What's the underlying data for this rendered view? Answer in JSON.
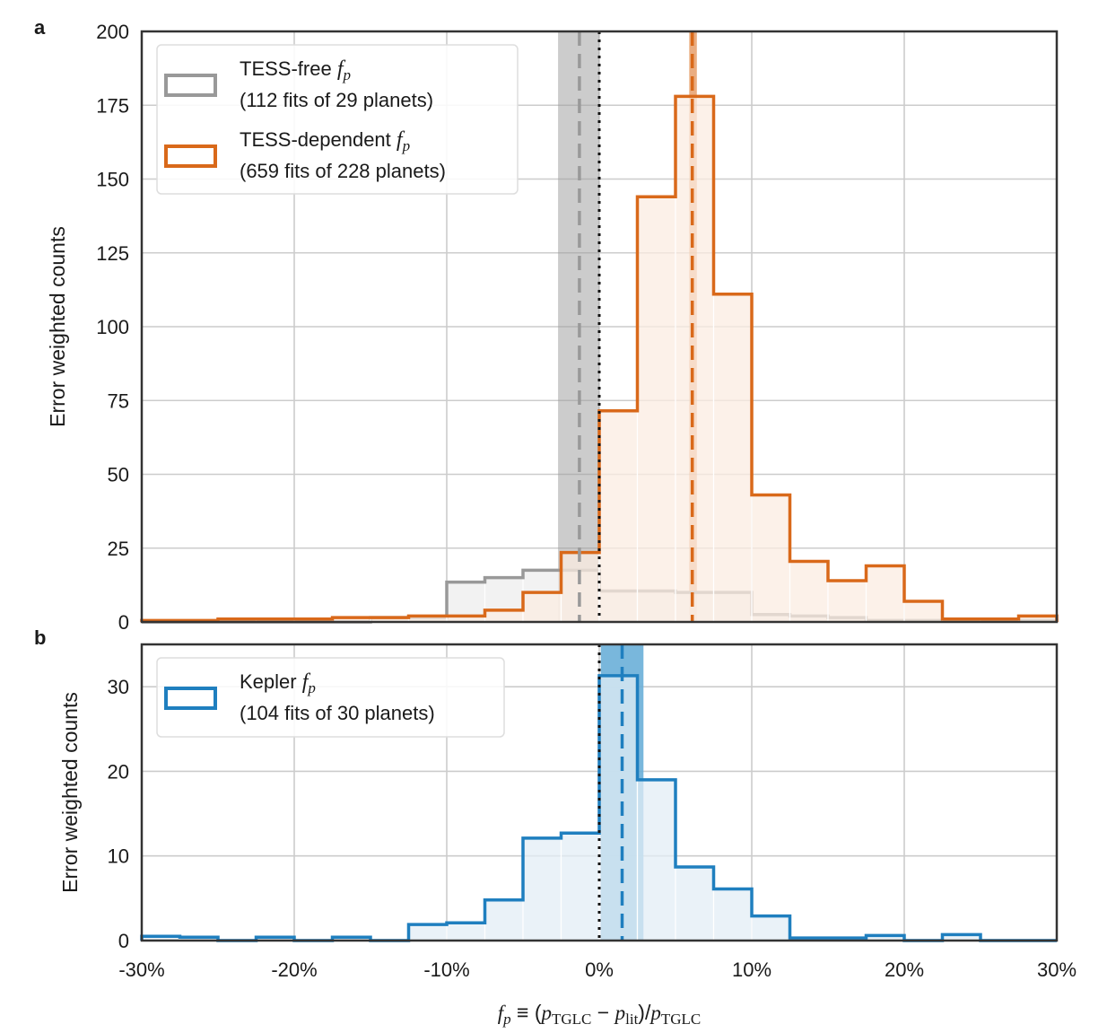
{
  "chart_data": [
    {
      "panel": "a",
      "type": "bar",
      "subtype": "step-histogram",
      "ylabel": "Error weighted counts",
      "xlabel": "",
      "xlim": [
        -30,
        30
      ],
      "ylim": [
        0,
        200
      ],
      "yticks": [
        0,
        25,
        50,
        75,
        100,
        125,
        150,
        175,
        200
      ],
      "grid": true,
      "legend_placement": "top-left",
      "bin_edges": [
        -30,
        -27.5,
        -25,
        -22.5,
        -20,
        -17.5,
        -15,
        -12.5,
        -10,
        -7.5,
        -5,
        -2.5,
        0,
        2.5,
        5,
        7.5,
        10,
        12.5,
        15,
        17.5,
        20,
        22.5,
        25,
        27.5,
        30
      ],
      "series": [
        {
          "name": "TESS-free f_p",
          "legend_line1": "TESS-free ",
          "legend_math": "f",
          "legend_sub": "p",
          "legend_line2": "(112 fits of 29 planets)",
          "color": "#999999",
          "fill": "#eeeeee",
          "values": [
            0,
            0,
            0,
            0,
            0,
            0,
            1.5,
            1.5,
            13.5,
            15,
            17.5,
            17.5,
            10.5,
            10.5,
            10,
            10,
            2.5,
            2,
            1.5,
            0.5,
            0.5,
            0.5,
            0.5,
            0.5
          ],
          "median": -1.3,
          "band": [
            -2.7,
            0
          ]
        },
        {
          "name": "TESS-dependent f_p",
          "legend_line1": "TESS-dependent ",
          "legend_math": "f",
          "legend_sub": "p",
          "legend_line2": "(659 fits of 228 planets)",
          "color": "#d9691a",
          "fill": "#fbece1",
          "values": [
            0.5,
            0.5,
            1,
            1,
            1,
            1.5,
            1.5,
            2,
            2,
            4,
            10,
            23.5,
            71.5,
            144,
            178,
            111,
            43,
            20.5,
            14,
            19,
            7,
            1,
            1,
            2
          ],
          "median": 6.1,
          "band": [
            5.9,
            6.4
          ]
        }
      ]
    },
    {
      "panel": "b",
      "type": "bar",
      "subtype": "step-histogram",
      "ylabel": "Error weighted counts",
      "xlabel": "f_p ≡ (p_TGLC − p_lit)/p_TGLC",
      "xlim": [
        -30,
        30
      ],
      "ylim": [
        0,
        35
      ],
      "yticks": [
        0,
        10,
        20,
        30
      ],
      "xticks": [
        -30,
        -20,
        -10,
        0,
        10,
        20,
        30
      ],
      "xticklabels": [
        "-30%",
        "-20%",
        "-10%",
        "0%",
        "10%",
        "20%",
        "30%"
      ],
      "grid": true,
      "legend_placement": "top-left",
      "bin_edges": [
        -30,
        -27.5,
        -25,
        -22.5,
        -20,
        -17.5,
        -15,
        -12.5,
        -10,
        -7.5,
        -5,
        -2.5,
        0,
        2.5,
        5,
        7.5,
        10,
        12.5,
        15,
        17.5,
        20,
        22.5,
        25,
        27.5,
        30
      ],
      "series": [
        {
          "name": "Kepler f_p",
          "legend_line1": "Kepler ",
          "legend_math": "f",
          "legend_sub": "p",
          "legend_line2": "(104 fits of 30 planets)",
          "color": "#1f7fbf",
          "fill": "#e3eef6",
          "band_color": "#6aafd8",
          "values": [
            0.5,
            0.4,
            0,
            0.4,
            0,
            0.4,
            0,
            1.9,
            2.1,
            4.8,
            12.1,
            12.7,
            31.3,
            19,
            8.7,
            6.1,
            2.9,
            0.3,
            0.3,
            0.6,
            0,
            0.7,
            0,
            0
          ],
          "median": 1.5,
          "band": [
            0.1,
            2.9
          ]
        }
      ]
    }
  ],
  "labels": {
    "panel_a": "a",
    "panel_b": "b",
    "ylabel": "Error weighted counts",
    "xlabel_math": {
      "f": "f",
      "p": "p",
      "equiv": " ≡ (",
      "pt": "p",
      "tglc": "TGLC",
      "minus": " − ",
      "pl": "p",
      "lit": "lit",
      "close": ")/",
      "pt2": "p",
      "tglc2": "TGLC"
    }
  }
}
